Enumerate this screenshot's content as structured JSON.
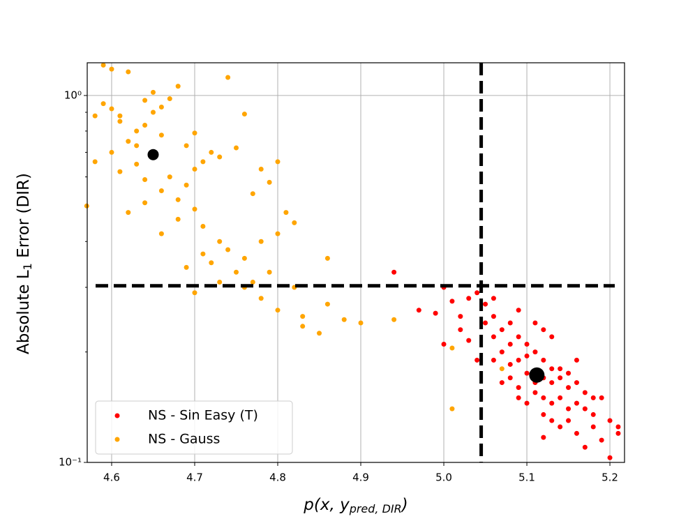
{
  "chart_data": {
    "type": "scatter",
    "xlabel": {
      "main": "p(x, y",
      "sub": "pred, DIR",
      "end": ")"
    },
    "ylabel": {
      "main": "Absolute L",
      "sub": "1",
      "end": " Error (DIR)"
    },
    "xlim": [
      4.5706,
      5.2176
    ],
    "ylim": [
      0.1,
      1.228
    ],
    "log_y": true,
    "grid": true,
    "legend": "lower left",
    "xticks": [
      4.6,
      4.7,
      4.8,
      4.9,
      {
        "value": 5,
        "label": "5.0"
      },
      5.1,
      5.2
    ],
    "yticks": [
      {
        "value": 0.1,
        "label": "10⁻¹"
      },
      {
        "value": 1,
        "label": "10⁰"
      }
    ],
    "yminorticks": [
      0.2,
      0.3,
      0.4,
      0.5,
      0.6,
      0.7,
      0.8,
      0.9
    ],
    "reference_lines": {
      "x": 5.045,
      "y": 0.303,
      "color": "#000000"
    },
    "centroids": [
      {
        "x": 4.65,
        "y": 0.69,
        "color": "#000000"
      },
      {
        "x": 5.112,
        "y": 0.173,
        "color": "#000000"
      }
    ],
    "series": [
      {
        "name": "NS - Sin Easy (T)",
        "color": "#ff0000",
        "x": [
          4.94,
          4.97,
          4.99,
          5.0,
          5.01,
          5.02,
          5.03,
          5.04,
          5.02,
          5.03,
          5.0,
          5.05,
          5.05,
          5.06,
          5.06,
          5.07,
          5.08,
          5.07,
          5.08,
          5.09,
          5.1,
          5.06,
          5.08,
          5.09,
          5.1,
          5.11,
          5.12,
          5.13,
          5.07,
          5.08,
          5.09,
          5.1,
          5.11,
          5.12,
          5.13,
          5.14,
          5.15,
          5.16,
          5.17,
          5.09,
          5.1,
          5.11,
          5.12,
          5.13,
          5.14,
          5.15,
          5.16,
          5.17,
          5.18,
          5.19,
          5.12,
          5.13,
          5.14,
          5.15,
          5.16,
          5.18,
          5.2,
          5.21,
          5.17,
          5.2,
          5.12,
          5.19,
          5.21,
          5.14,
          5.16,
          5.18,
          5.11,
          5.13,
          5.15,
          5.04,
          5.06,
          5.09,
          5.12
        ],
        "values": [
          0.33,
          0.26,
          0.255,
          0.3,
          0.275,
          0.25,
          0.28,
          0.29,
          0.23,
          0.215,
          0.21,
          0.27,
          0.24,
          0.25,
          0.22,
          0.23,
          0.24,
          0.2,
          0.21,
          0.22,
          0.21,
          0.19,
          0.185,
          0.19,
          0.195,
          0.2,
          0.19,
          0.18,
          0.165,
          0.17,
          0.16,
          0.175,
          0.165,
          0.17,
          0.165,
          0.17,
          0.16,
          0.165,
          0.155,
          0.15,
          0.145,
          0.155,
          0.15,
          0.145,
          0.15,
          0.14,
          0.145,
          0.14,
          0.135,
          0.15,
          0.135,
          0.13,
          0.125,
          0.13,
          0.12,
          0.125,
          0.13,
          0.125,
          0.11,
          0.103,
          0.117,
          0.115,
          0.12,
          0.18,
          0.19,
          0.15,
          0.24,
          0.22,
          0.175,
          0.19,
          0.28,
          0.26,
          0.23
        ]
      },
      {
        "name": "NS - Gauss",
        "color": "#ffa500",
        "x": [
          4.58,
          4.59,
          4.6,
          4.62,
          4.59,
          4.6,
          4.61,
          4.63,
          4.64,
          4.65,
          4.66,
          4.67,
          4.65,
          4.62,
          4.6,
          4.58,
          4.57,
          4.61,
          4.63,
          4.64,
          4.66,
          4.67,
          4.68,
          4.69,
          4.7,
          4.71,
          4.72,
          4.73,
          4.75,
          4.78,
          4.8,
          4.77,
          4.79,
          4.62,
          4.64,
          4.66,
          4.68,
          4.7,
          4.71,
          4.73,
          4.74,
          4.76,
          4.78,
          4.8,
          4.82,
          4.72,
          4.75,
          4.77,
          4.79,
          4.82,
          4.7,
          4.73,
          4.76,
          4.78,
          4.8,
          4.83,
          4.86,
          4.88,
          4.9,
          4.94,
          4.85,
          4.83,
          4.69,
          4.74,
          4.68,
          4.7,
          4.66,
          4.69,
          4.76,
          4.81,
          4.86,
          4.71,
          5.01,
          5.01,
          5.07,
          4.63,
          4.61,
          4.64
        ],
        "values": [
          0.88,
          1.21,
          1.18,
          1.16,
          0.95,
          0.92,
          0.85,
          0.8,
          0.97,
          0.9,
          0.93,
          0.98,
          1.02,
          0.75,
          0.7,
          0.66,
          0.5,
          0.62,
          0.65,
          0.59,
          0.55,
          0.6,
          0.52,
          0.57,
          0.63,
          0.66,
          0.7,
          0.68,
          0.72,
          0.63,
          0.66,
          0.54,
          0.58,
          0.48,
          0.51,
          0.42,
          0.46,
          0.49,
          0.44,
          0.4,
          0.38,
          0.36,
          0.4,
          0.42,
          0.45,
          0.35,
          0.33,
          0.31,
          0.33,
          0.3,
          0.29,
          0.31,
          0.3,
          0.28,
          0.26,
          0.25,
          0.27,
          0.245,
          0.24,
          0.245,
          0.225,
          0.235,
          0.34,
          1.12,
          1.06,
          0.79,
          0.78,
          0.73,
          0.89,
          0.48,
          0.36,
          0.37,
          0.205,
          0.14,
          0.18,
          0.73,
          0.88,
          0.83
        ]
      }
    ]
  }
}
